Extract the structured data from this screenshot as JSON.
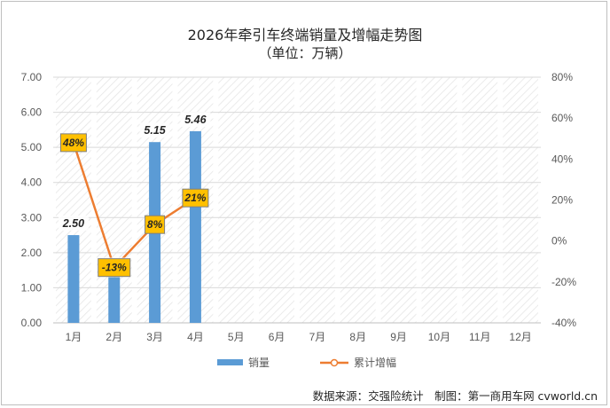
{
  "chart_data": {
    "type": "bar",
    "title": "2026年牵引车终端销量及增幅走势图",
    "subtitle": "（单位：万辆）",
    "categories": [
      "1月",
      "2月",
      "3月",
      "4月",
      "5月",
      "6月",
      "7月",
      "8月",
      "9月",
      "10月",
      "11月",
      "12月"
    ],
    "series": [
      {
        "name": "销量",
        "type": "bar",
        "axis": "left",
        "color": "#5b9bd5",
        "values": [
          2.5,
          1.3,
          5.15,
          5.46,
          null,
          null,
          null,
          null,
          null,
          null,
          null,
          null
        ],
        "labels": [
          "2.50",
          "1.30",
          "5.15",
          "5.46"
        ]
      },
      {
        "name": "累计增幅",
        "type": "line",
        "axis": "right",
        "color": "#ed7d31",
        "values": [
          48,
          -13,
          8,
          21,
          null,
          null,
          null,
          null,
          null,
          null,
          null,
          null
        ],
        "labels": [
          "48%",
          "-13%",
          "8%",
          "21%"
        ]
      }
    ],
    "y_left": {
      "min": 0,
      "max": 7,
      "step": 1,
      "ticks": [
        "0.00",
        "1.00",
        "2.00",
        "3.00",
        "4.00",
        "5.00",
        "6.00",
        "7.00"
      ]
    },
    "y_right": {
      "min": -40,
      "max": 80,
      "step": 20,
      "ticks": [
        "-40%",
        "-20%",
        "0%",
        "20%",
        "40%",
        "60%",
        "80%"
      ]
    },
    "grid": true,
    "legend": "bottom",
    "source": "数据来源：交强险统计　制图：第一商用车网 cvworld.cn"
  }
}
